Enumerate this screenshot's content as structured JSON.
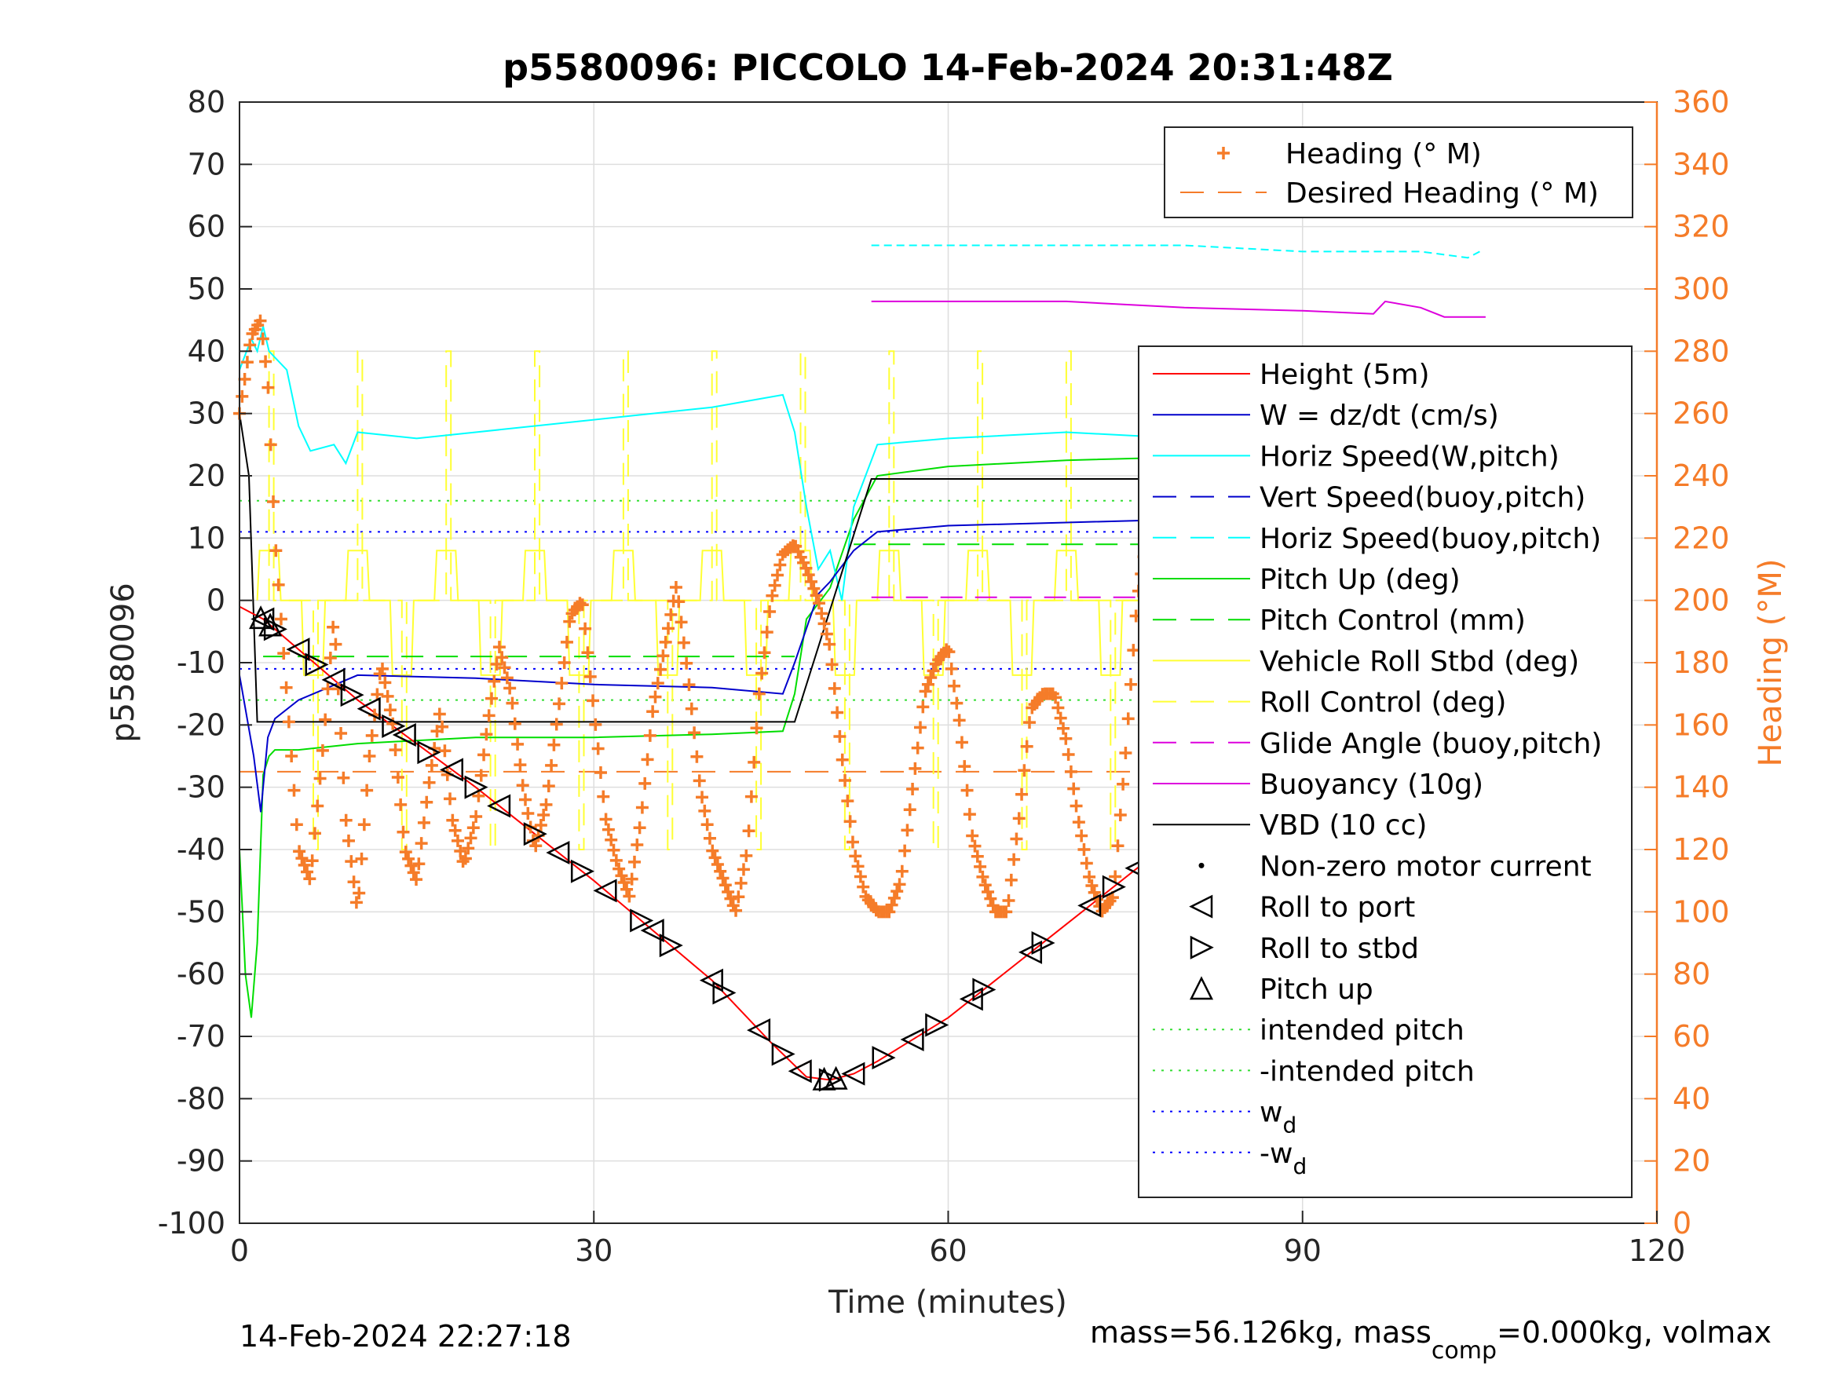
{
  "chart_data": {
    "type": "line",
    "title": "p5580096: PICCOLO 14-Feb-2024 20:31:48Z",
    "xlabel": "Time (minutes)",
    "ylabel_left": "p5580096",
    "ylabel_right": "Heading (°M)",
    "xlim": [
      0,
      120
    ],
    "ylim_left": [
      -100,
      80
    ],
    "ylim_right": [
      0,
      360
    ],
    "x_ticks": [
      "0",
      "30",
      "60",
      "90",
      "120"
    ],
    "y_ticks_left": [
      "80",
      "70",
      "60",
      "50",
      "40",
      "30",
      "20",
      "10",
      "0",
      "-10",
      "-20",
      "-30",
      "-40",
      "-50",
      "-60",
      "-70",
      "-80",
      "-90",
      "-100"
    ],
    "y_ticks_right": [
      "360",
      "340",
      "320",
      "300",
      "280",
      "260",
      "240",
      "220",
      "200",
      "180",
      "160",
      "140",
      "120",
      "100",
      "80",
      "60",
      "40",
      "20",
      "0"
    ],
    "grid": true,
    "colors": {
      "heading": "#f57c29",
      "height": "#ff0000",
      "w": "#0000cc",
      "horiz_speed": "#00ffff",
      "pitch": "#00dd00",
      "roll": "#ffff33",
      "buoyancy": "#dd00dd",
      "vbd": "#000000",
      "intended_pitch": "#33dd33",
      "wd": "#0000ff",
      "right_axis": "#f57c29"
    },
    "legend_top": {
      "placement": "top-right",
      "entries": [
        {
          "label": "Heading (° M)",
          "style": "plus",
          "color": "#f57c29"
        },
        {
          "label": "Desired Heading (° M)",
          "style": "dashed",
          "color": "#f57c29"
        }
      ]
    },
    "legend_main": {
      "placement": "right",
      "entries": [
        {
          "label": "Height (5m)",
          "style": "solid",
          "color": "#ff0000"
        },
        {
          "label": "W = dz/dt (cm/s)",
          "style": "solid",
          "color": "#0000cc"
        },
        {
          "label": "Horiz Speed(W,pitch)",
          "style": "solid",
          "color": "#00ffff"
        },
        {
          "label": "Vert Speed(buoy,pitch)",
          "style": "dashed",
          "color": "#0000cc"
        },
        {
          "label": "Horiz Speed(buoy,pitch)",
          "style": "dashed",
          "color": "#00ffff"
        },
        {
          "label": "Pitch Up (deg)",
          "style": "solid",
          "color": "#00dd00"
        },
        {
          "label": "Pitch Control (mm)",
          "style": "dashed",
          "color": "#00dd00"
        },
        {
          "label": "Vehicle Roll Stbd (deg)",
          "style": "solid",
          "color": "#ffff33"
        },
        {
          "label": "Roll Control (deg)",
          "style": "dashed",
          "color": "#ffff33"
        },
        {
          "label": "Glide Angle (buoy,pitch)",
          "style": "dashed",
          "color": "#dd00dd"
        },
        {
          "label": "Buoyancy (10g)",
          "style": "solid",
          "color": "#dd00dd"
        },
        {
          "label": "VBD (10 cc)",
          "style": "solid",
          "color": "#000000"
        },
        {
          "label": "Non-zero motor current",
          "style": "dot",
          "color": "#000000"
        },
        {
          "label": "Roll to port",
          "style": "tri-left",
          "color": "#000000"
        },
        {
          "label": "Roll to stbd",
          "style": "tri-right",
          "color": "#000000"
        },
        {
          "label": "Pitch up",
          "style": "tri-up",
          "color": "#000000"
        },
        {
          "label": "intended pitch",
          "style": "dotted",
          "color": "#33dd33"
        },
        {
          "label": "-intended pitch",
          "style": "dotted",
          "color": "#33dd33"
        },
        {
          "label": "w",
          "sub": "d",
          "style": "dotted",
          "color": "#0000ff"
        },
        {
          "label": "-w",
          "sub": "d",
          "style": "dotted",
          "color": "#0000ff"
        }
      ]
    },
    "series": {
      "height": {
        "x": [
          0,
          2,
          10,
          20,
          30,
          40,
          45,
          48,
          50,
          52,
          54,
          60,
          70,
          80,
          90,
          100,
          105.5
        ],
        "y": [
          -1,
          -3,
          -16,
          -30,
          -45,
          -61,
          -71,
          -76.5,
          -77,
          -76,
          -74,
          -67,
          -52,
          -37,
          -23,
          -9,
          -1
        ]
      },
      "w": {
        "x": [
          0,
          1.2,
          1.8,
          2.4,
          3,
          5,
          10,
          20,
          30,
          40,
          46,
          47,
          49,
          50,
          52,
          54,
          60,
          70,
          80,
          90,
          100,
          104,
          105.5
        ],
        "y": [
          -12,
          -25,
          -34,
          -22,
          -19,
          -16,
          -12,
          -12.5,
          -13.5,
          -14,
          -15,
          -10,
          1,
          3,
          8,
          11,
          12,
          12.5,
          13,
          12,
          11,
          11.5,
          11.5
        ]
      },
      "horiz_speed": {
        "x": [
          0,
          1,
          1.5,
          2,
          2.5,
          3,
          4,
          5,
          6,
          8,
          9,
          10,
          15,
          20,
          30,
          40,
          46,
          47,
          48,
          49,
          50,
          51,
          52,
          54,
          60,
          70,
          80,
          90,
          100,
          104,
          105.5
        ],
        "y": [
          37,
          42,
          40,
          44,
          40,
          39,
          37,
          28,
          24,
          25,
          22,
          27,
          26,
          27,
          29,
          31,
          33,
          27,
          15,
          5,
          8,
          0,
          15,
          25,
          26,
          27,
          26,
          26,
          25,
          24,
          23
        ]
      },
      "horiz_speed_buoy": {
        "x": [
          53.5,
          60,
          70,
          80,
          90,
          100,
          104,
          105
        ],
        "y": [
          57,
          57,
          57,
          57,
          56,
          56,
          55,
          56
        ]
      },
      "pitch": {
        "x": [
          0,
          0.5,
          1,
          1.5,
          2,
          2.5,
          3,
          5,
          10,
          20,
          30,
          40,
          46,
          47,
          48,
          50,
          52,
          54,
          60,
          70,
          80,
          90,
          100,
          105.5
        ],
        "y": [
          -40,
          -60,
          -67,
          -55,
          -28,
          -25,
          -24,
          -24,
          -23,
          -22,
          -22,
          -21.5,
          -21,
          -15,
          -3,
          2,
          13,
          20,
          21.5,
          22.5,
          23,
          22.5,
          22,
          20
        ]
      },
      "buoyancy": {
        "x": [
          53.5,
          70,
          80,
          90,
          96,
          97,
          100,
          102,
          105.5
        ],
        "y": [
          48,
          48,
          47,
          46.5,
          46,
          48,
          47,
          45.5,
          45.5
        ]
      },
      "vbd": {
        "x": [
          0,
          0.8,
          1.5,
          47,
          53.5,
          105.5
        ],
        "y": [
          30,
          20,
          -19.5,
          -19.5,
          19.5,
          19.5
        ]
      },
      "intended_pitch": {
        "x": [
          0,
          105.5
        ],
        "y_pos": 16,
        "y_neg": -16
      },
      "wd": {
        "x": [
          0,
          105.5
        ],
        "y_pos": 11,
        "y_neg": -11
      },
      "desired_heading": {
        "x": [
          0,
          105.5
        ],
        "heading": 145
      },
      "heading": {
        "x": [
          0,
          1,
          1.8,
          2.4,
          3,
          4,
          5,
          6,
          7,
          8,
          9,
          10,
          11,
          12,
          13,
          14,
          15,
          16,
          17,
          18,
          19,
          20,
          21,
          22,
          23,
          24,
          25,
          26,
          27,
          28,
          29,
          30,
          31,
          32,
          33,
          34,
          35,
          36,
          37,
          38,
          39,
          40,
          41,
          42,
          43,
          44,
          45,
          46,
          47,
          48,
          49,
          50,
          51,
          52,
          53,
          54,
          55,
          56,
          57,
          58,
          59,
          60,
          61,
          62,
          63,
          64,
          65,
          66,
          67,
          68,
          69,
          70,
          71,
          72,
          73,
          74,
          75,
          76,
          77,
          78,
          79,
          80,
          81,
          82,
          83,
          84,
          85,
          86,
          87,
          88,
          89,
          90,
          91,
          92,
          93,
          94,
          95,
          96,
          97,
          98,
          99,
          100,
          101,
          102,
          103,
          104,
          105
        ],
        "y": [
          260,
          285,
          290,
          270,
          220,
          170,
          120,
          110,
          150,
          195,
          130,
          100,
          150,
          180,
          160,
          120,
          110,
          140,
          165,
          130,
          115,
          130,
          160,
          185,
          170,
          140,
          120,
          135,
          165,
          195,
          200,
          165,
          130,
          115,
          105,
          130,
          165,
          185,
          205,
          175,
          140,
          120,
          110,
          100,
          120,
          170,
          200,
          215,
          218,
          210,
          200,
          185,
          150,
          120,
          105,
          100,
          100,
          110,
          140,
          170,
          180,
          185,
          160,
          125,
          110,
          100,
          100,
          130,
          165,
          170,
          170,
          155,
          130,
          110,
          100,
          105,
          150,
          200,
          225,
          200,
          160,
          110,
          60,
          70,
          120,
          160,
          180,
          185,
          175,
          150,
          120,
          110,
          140,
          175,
          180,
          150,
          120,
          100,
          120,
          160,
          175,
          170,
          140,
          110,
          105,
          140,
          170
        ]
      },
      "roll_port_x": [
        2,
        5,
        8,
        11,
        14,
        18,
        22,
        27,
        31,
        35,
        40,
        44,
        47.5,
        52,
        57,
        62,
        67,
        72,
        76,
        81,
        85,
        90,
        95,
        100,
        104
      ],
      "roll_stbd_x": [
        3,
        6.5,
        9.5,
        13,
        16,
        20,
        25,
        29,
        34,
        36.5,
        41,
        46,
        50,
        54.5,
        59,
        63,
        68,
        74,
        80,
        84,
        88,
        93,
        98,
        102,
        105
      ]
    }
  },
  "footer": {
    "timestamp": "14-Feb-2024 22:27:18",
    "mass_prefix": "mass=56.126kg, mass",
    "mass_sub": "comp",
    "mass_suffix": "=0.000kg, volmax"
  }
}
